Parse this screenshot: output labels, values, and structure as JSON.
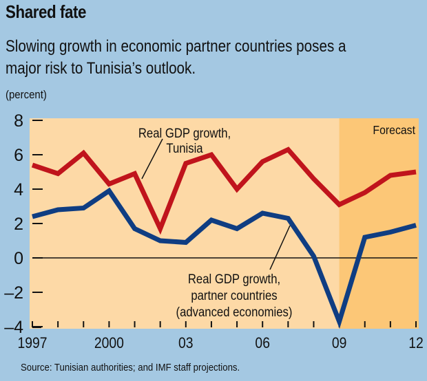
{
  "header": {
    "title": "Shared fate",
    "subtitle_line1": "Slowing growth in economic partner countries poses a",
    "subtitle_line2": "major risk to Tunisia’s outlook.",
    "unit": "(percent)"
  },
  "footer": {
    "source": "Source: Tunisian authorities; and IMF staff projections."
  },
  "colors": {
    "background": "#a4c8e2",
    "plot_background": "#fdd9a6",
    "forecast_background": "#fcc777",
    "tunisia": "#c0141c",
    "partners": "#0f3d82"
  },
  "chart_data": {
    "type": "line",
    "title": "Shared fate",
    "subtitle": "Slowing growth in economic partner countries poses a major risk to Tunisia’s outlook.",
    "xlabel": "",
    "ylabel": "(percent)",
    "x": [
      1997,
      1998,
      1999,
      2000,
      2001,
      2002,
      2003,
      2004,
      2005,
      2006,
      2007,
      2008,
      2009,
      2010,
      2011,
      2012
    ],
    "xlim": [
      1997,
      2012
    ],
    "ylim": [
      -4,
      8
    ],
    "yticks": [
      8,
      6,
      4,
      2,
      0,
      -2,
      -4
    ],
    "ytick_labels": [
      "8",
      "6",
      "4",
      "2",
      "0",
      "–2",
      "–4"
    ],
    "xtick_labels": [
      {
        "x": 1997,
        "label": "1997"
      },
      {
        "x": 2000,
        "label": "2000"
      },
      {
        "x": 2003,
        "label": "03"
      },
      {
        "x": 2006,
        "label": "06"
      },
      {
        "x": 2009,
        "label": "09"
      },
      {
        "x": 2012,
        "label": "12"
      }
    ],
    "grid": false,
    "zero_line": true,
    "forecast_region": {
      "from": 2009,
      "to": 2012,
      "label": "Forecast"
    },
    "series": [
      {
        "name": "Real GDP growth, Tunisia",
        "label_lines": [
          "Real GDP growth,",
          "Tunisia"
        ],
        "values": [
          5.4,
          4.9,
          6.1,
          4.3,
          4.9,
          1.7,
          5.5,
          6.0,
          4.0,
          5.6,
          6.3,
          4.6,
          3.1,
          3.8,
          4.8,
          5.0
        ]
      },
      {
        "name": "Real GDP growth, partner countries (advanced economies)",
        "label_lines": [
          "Real GDP growth,",
          "partner countries",
          "(advanced economies)"
        ],
        "values": [
          2.4,
          2.8,
          2.9,
          3.9,
          1.7,
          1.0,
          0.9,
          2.2,
          1.7,
          2.6,
          2.3,
          0.1,
          -3.7,
          1.2,
          1.5,
          1.9
        ]
      }
    ]
  }
}
